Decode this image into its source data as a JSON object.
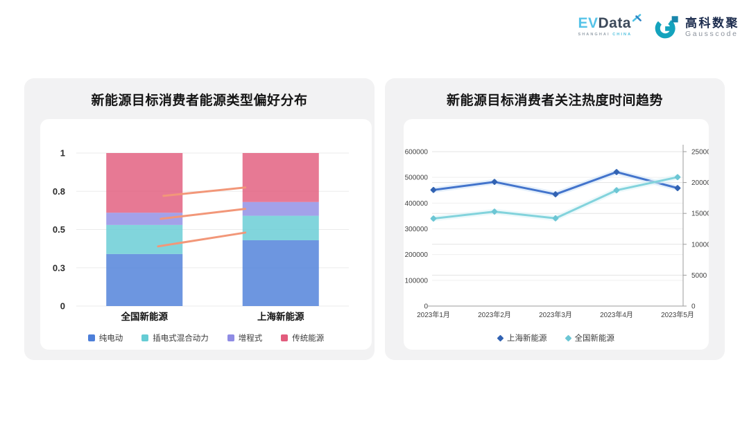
{
  "header": {
    "evdata": {
      "word_ev": "EV",
      "word_data": "Data",
      "subtitle_left": "SHANGHAI",
      "subtitle_right": "CHINA"
    },
    "gausscode": {
      "name_cn": "高科数聚",
      "name_en": "Gausscode"
    }
  },
  "colors": {
    "pure_ev_blue": "#4d7fd9",
    "phev_teal": "#65ccd4",
    "erev_purple": "#8f8ce4",
    "traditional_pink": "#e25c7d",
    "annotation_orange": "#f29779",
    "shanghai_line_blue": "#4374cc",
    "national_line_teal": "#82d3dc"
  },
  "chart_data": [
    {
      "type": "bar",
      "stacked": true,
      "title": "新能源目标消费者能源类型偏好分布",
      "categories": [
        "全国新能源",
        "上海新能源"
      ],
      "series": [
        {
          "name": "纯电动",
          "color": "#4d7fd9",
          "values": [
            0.34,
            0.43
          ]
        },
        {
          "name": "插电式混合动力",
          "color": "#65ccd4",
          "values": [
            0.19,
            0.16
          ]
        },
        {
          "name": "增程式",
          "color": "#8f8ce4",
          "values": [
            0.08,
            0.09
          ]
        },
        {
          "name": "传统能源",
          "color": "#e25c7d",
          "values": [
            0.39,
            0.32
          ]
        }
      ],
      "y_axis": {
        "min": 0,
        "max": 1,
        "tick_values": [
          0,
          0.25,
          0.5,
          0.75,
          1
        ],
        "tick_labels": [
          "0",
          "0.3",
          "0.5",
          "0.8",
          "1"
        ]
      },
      "grid": true,
      "legend_position": "bottom",
      "annotations": {
        "color": "#f29779",
        "lines": [
          {
            "x1": 0.32,
            "y1": 0.72,
            "x2": 0.62,
            "y2": 0.775
          },
          {
            "x1": 0.31,
            "y1": 0.57,
            "x2": 0.62,
            "y2": 0.635
          },
          {
            "x1": 0.3,
            "y1": 0.39,
            "x2": 0.62,
            "y2": 0.48
          }
        ]
      }
    },
    {
      "type": "line",
      "title": "新能源目标消费者关注热度时间趋势",
      "x_categories": [
        "2023年1月",
        "2023年2月",
        "2023年3月",
        "2023年4月",
        "2023年5月"
      ],
      "y_left": {
        "min": 0,
        "max": 600000,
        "step": 100000,
        "tick_labels": [
          "0",
          "100000",
          "200000",
          "300000",
          "400000",
          "500000",
          "600000"
        ]
      },
      "y_right": {
        "min": 0,
        "max": 25000,
        "step": 5000,
        "tick_labels": [
          "0",
          "5000",
          "10000",
          "15000",
          "20000",
          "25000"
        ]
      },
      "series": [
        {
          "name": "上海新能源",
          "axis": "right",
          "line_color": "#4374cc",
          "marker_color": "#3162b2",
          "glow_color": "#cfe4f7",
          "values": [
            18800,
            20100,
            18100,
            21700,
            19100
          ]
        },
        {
          "name": "全国新能源",
          "axis": "left",
          "line_color": "#82d3dc",
          "marker_color": "#6cc6d4",
          "glow_color": "#def4f7",
          "values": [
            340000,
            367000,
            341000,
            450000,
            501000
          ]
        }
      ],
      "grid": true,
      "legend_position": "bottom"
    }
  ]
}
